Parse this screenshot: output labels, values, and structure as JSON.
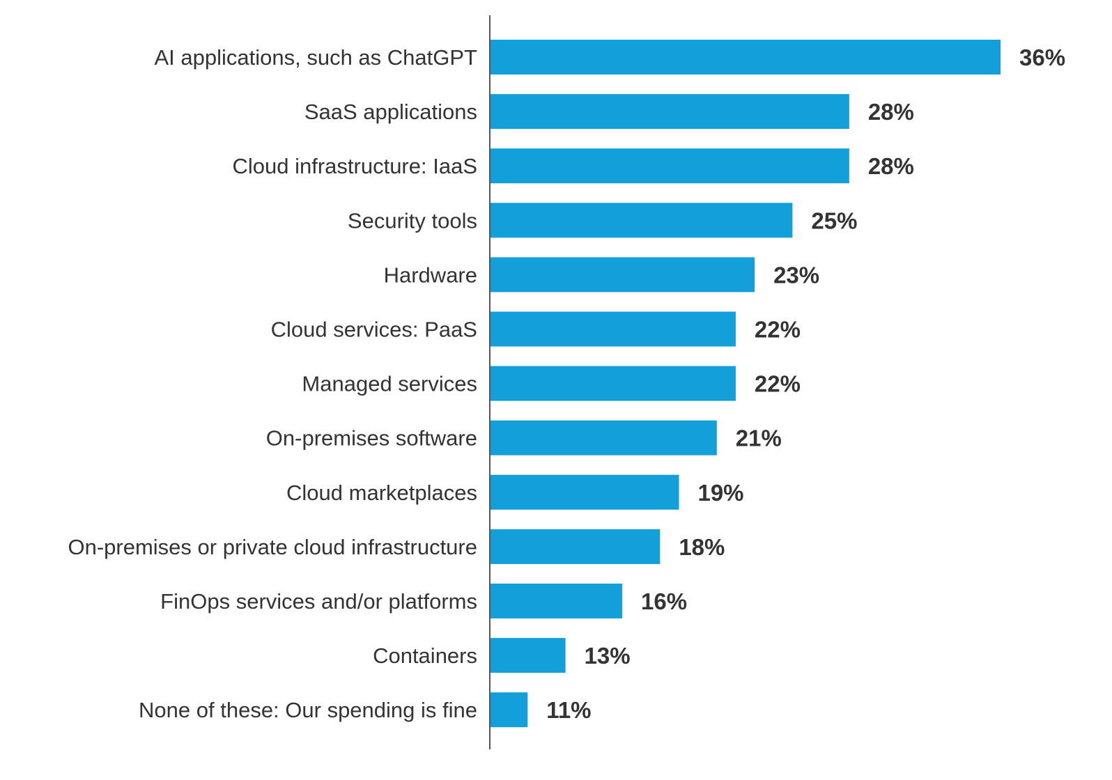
{
  "chart_data": {
    "type": "bar",
    "orientation": "horizontal",
    "categories": [
      "AI applications, such as ChatGPT",
      "SaaS applications",
      "Cloud infrastructure: IaaS",
      "Security tools",
      "Hardware",
      "Cloud services: PaaS",
      "Managed services",
      "On-premises software",
      "Cloud marketplaces",
      "On-premises or private cloud infrastructure",
      "FinOps services and/or platforms",
      "Containers",
      "None of these: Our spending is fine"
    ],
    "values": [
      36,
      28,
      28,
      25,
      23,
      22,
      22,
      21,
      19,
      18,
      16,
      13,
      11
    ],
    "value_labels": [
      "36%",
      "28%",
      "28%",
      "25%",
      "23%",
      "22%",
      "22%",
      "21%",
      "19%",
      "18%",
      "16%",
      "13%",
      "11%"
    ],
    "xlim": [
      9,
      36
    ],
    "grid": false,
    "bar_color": "#129FDA",
    "text_color": "#333333"
  }
}
